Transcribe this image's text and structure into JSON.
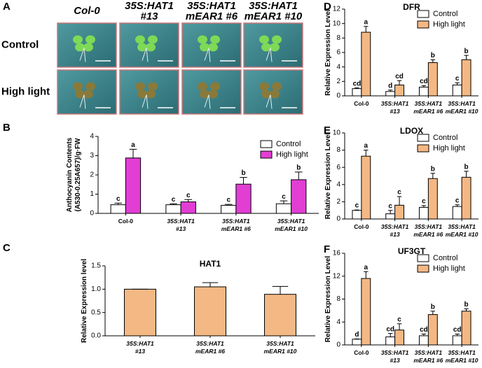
{
  "panel_a": {
    "label": "A",
    "columns": [
      [
        "Col-0"
      ],
      [
        "35S:HAT1",
        "#13"
      ],
      [
        "35S:HAT1",
        "mEAR1 #6"
      ],
      [
        "35S:HAT1",
        "mEAR1 #10"
      ]
    ],
    "rows": [
      "Control",
      "High light"
    ]
  },
  "chart_data": [
    {
      "type": "bar",
      "panel": "B",
      "ylabel": [
        "Anthocyanin Contents",
        "(A530-0.25A657)/g·FW"
      ],
      "categories": [
        [
          "Col-0"
        ],
        [
          "35S:HAT1",
          "#13"
        ],
        [
          "35S:HAT1",
          "mEAR1 #6"
        ],
        [
          "35S:HAT1",
          "mEAR1 #10"
        ]
      ],
      "ylim": [
        0,
        4
      ],
      "yticks": [
        0,
        1,
        2,
        3,
        4
      ],
      "legend": "upper right",
      "series": [
        {
          "name": "Control",
          "color": "#ffffff",
          "values": [
            0.45,
            0.45,
            0.42,
            0.5
          ],
          "errors": [
            0.08,
            0.05,
            0.05,
            0.15
          ],
          "letters": [
            "c",
            "c",
            "c",
            "c"
          ]
        },
        {
          "name": "High light",
          "color": "#e23ed4",
          "values": [
            2.88,
            0.6,
            1.52,
            1.75
          ],
          "errors": [
            0.45,
            0.12,
            0.35,
            0.4
          ],
          "letters": [
            "a",
            "c",
            "b",
            "b"
          ]
        }
      ]
    },
    {
      "type": "bar",
      "panel": "C",
      "title": "HAT1",
      "ylabel": [
        "Relative Expression  level"
      ],
      "categories": [
        [
          "35S:HAT1",
          "#13"
        ],
        [
          "35S:HAT1",
          "mEAR1 #6"
        ],
        [
          "35S:HAT1",
          "mEAR1 #10"
        ]
      ],
      "ylim": [
        0,
        1.5
      ],
      "yticks": [
        {
          "value": 0,
          "label": "0.0"
        },
        {
          "value": 0.5,
          "label": "0.5"
        },
        {
          "value": 1,
          "label": "1.0"
        },
        {
          "value": 1.5,
          "label": "1.5"
        }
      ],
      "series": [
        {
          "color": "#f4b884",
          "values": [
            1.0,
            1.05,
            0.89
          ],
          "errors": [
            0,
            0.09,
            0.17
          ]
        }
      ]
    },
    {
      "type": "bar",
      "panel": "D",
      "title": "DFR",
      "ylabel": [
        "Relative Expression Level"
      ],
      "categories": [
        [
          "Col-0"
        ],
        [
          "35S:HAT1",
          "#13"
        ],
        [
          "35S:HAT1",
          "mEAR1 #6"
        ],
        [
          "35S:HAT1",
          "mEAR1 #10"
        ]
      ],
      "ylim": [
        0,
        12
      ],
      "yticks": [
        0,
        2,
        4,
        6,
        8,
        10,
        12
      ],
      "legend": "upper right",
      "series": [
        {
          "name": "Control",
          "color": "#ffffff",
          "values": [
            1.0,
            0.6,
            1.2,
            1.5
          ],
          "errors": [
            0.1,
            0.2,
            0.2,
            0.3
          ],
          "letters": [
            "cd",
            "d",
            "cd",
            "c"
          ]
        },
        {
          "name": "High light",
          "color": "#f4b884",
          "values": [
            8.8,
            1.5,
            4.6,
            5.0
          ],
          "errors": [
            0.8,
            0.6,
            0.4,
            0.6
          ],
          "letters": [
            "a",
            "cd",
            "b",
            "b"
          ]
        }
      ]
    },
    {
      "type": "bar",
      "panel": "E",
      "title": "LDOX",
      "ylabel": [
        "Relative Expression Level"
      ],
      "categories": [
        [
          "Col-0"
        ],
        [
          "35S:HAT1",
          "#13"
        ],
        [
          "35S:HAT1",
          "mEAR1 #6"
        ],
        [
          "35S:HAT1",
          "mEAR1 #10"
        ]
      ],
      "ylim": [
        0,
        10
      ],
      "yticks": [
        0,
        2,
        4,
        6,
        8,
        10
      ],
      "legend": "upper right",
      "series": [
        {
          "name": "Control",
          "color": "#ffffff",
          "values": [
            1.0,
            0.6,
            1.35,
            1.45
          ],
          "errors": [
            0.05,
            0.4,
            0.2,
            0.2
          ],
          "letters": [
            "c",
            "c",
            "c",
            "c"
          ]
        },
        {
          "name": "High light",
          "color": "#f4b884",
          "values": [
            7.3,
            1.6,
            4.7,
            4.85
          ],
          "errors": [
            0.7,
            1.0,
            0.6,
            0.7
          ],
          "letters": [
            "a",
            "c",
            "b",
            "b"
          ]
        }
      ]
    },
    {
      "type": "bar",
      "panel": "F",
      "title": "UF3GT",
      "ylabel": [
        "Relative Expression Level"
      ],
      "categories": [
        [
          "Col-0"
        ],
        [
          "35S:HAT1",
          "#13"
        ],
        [
          "35S:HAT1",
          "mEAR1 #6"
        ],
        [
          "35S:HAT1",
          "mEAR1 #10"
        ]
      ],
      "ylim": [
        0,
        16
      ],
      "yticks": [
        0,
        4,
        8,
        12,
        16
      ],
      "legend": "upper right",
      "series": [
        {
          "name": "Control",
          "color": "#ffffff",
          "values": [
            1.0,
            1.4,
            1.6,
            1.6
          ],
          "errors": [
            0.05,
            0.6,
            0.3,
            0.3
          ],
          "letters": [
            "d",
            "cd",
            "cd",
            "cd"
          ]
        },
        {
          "name": "High light",
          "color": "#f4b884",
          "values": [
            11.6,
            2.6,
            5.3,
            5.9
          ],
          "errors": [
            1.2,
            1.1,
            0.6,
            0.4
          ],
          "letters": [
            "a",
            "c",
            "b",
            "b"
          ]
        }
      ]
    }
  ]
}
